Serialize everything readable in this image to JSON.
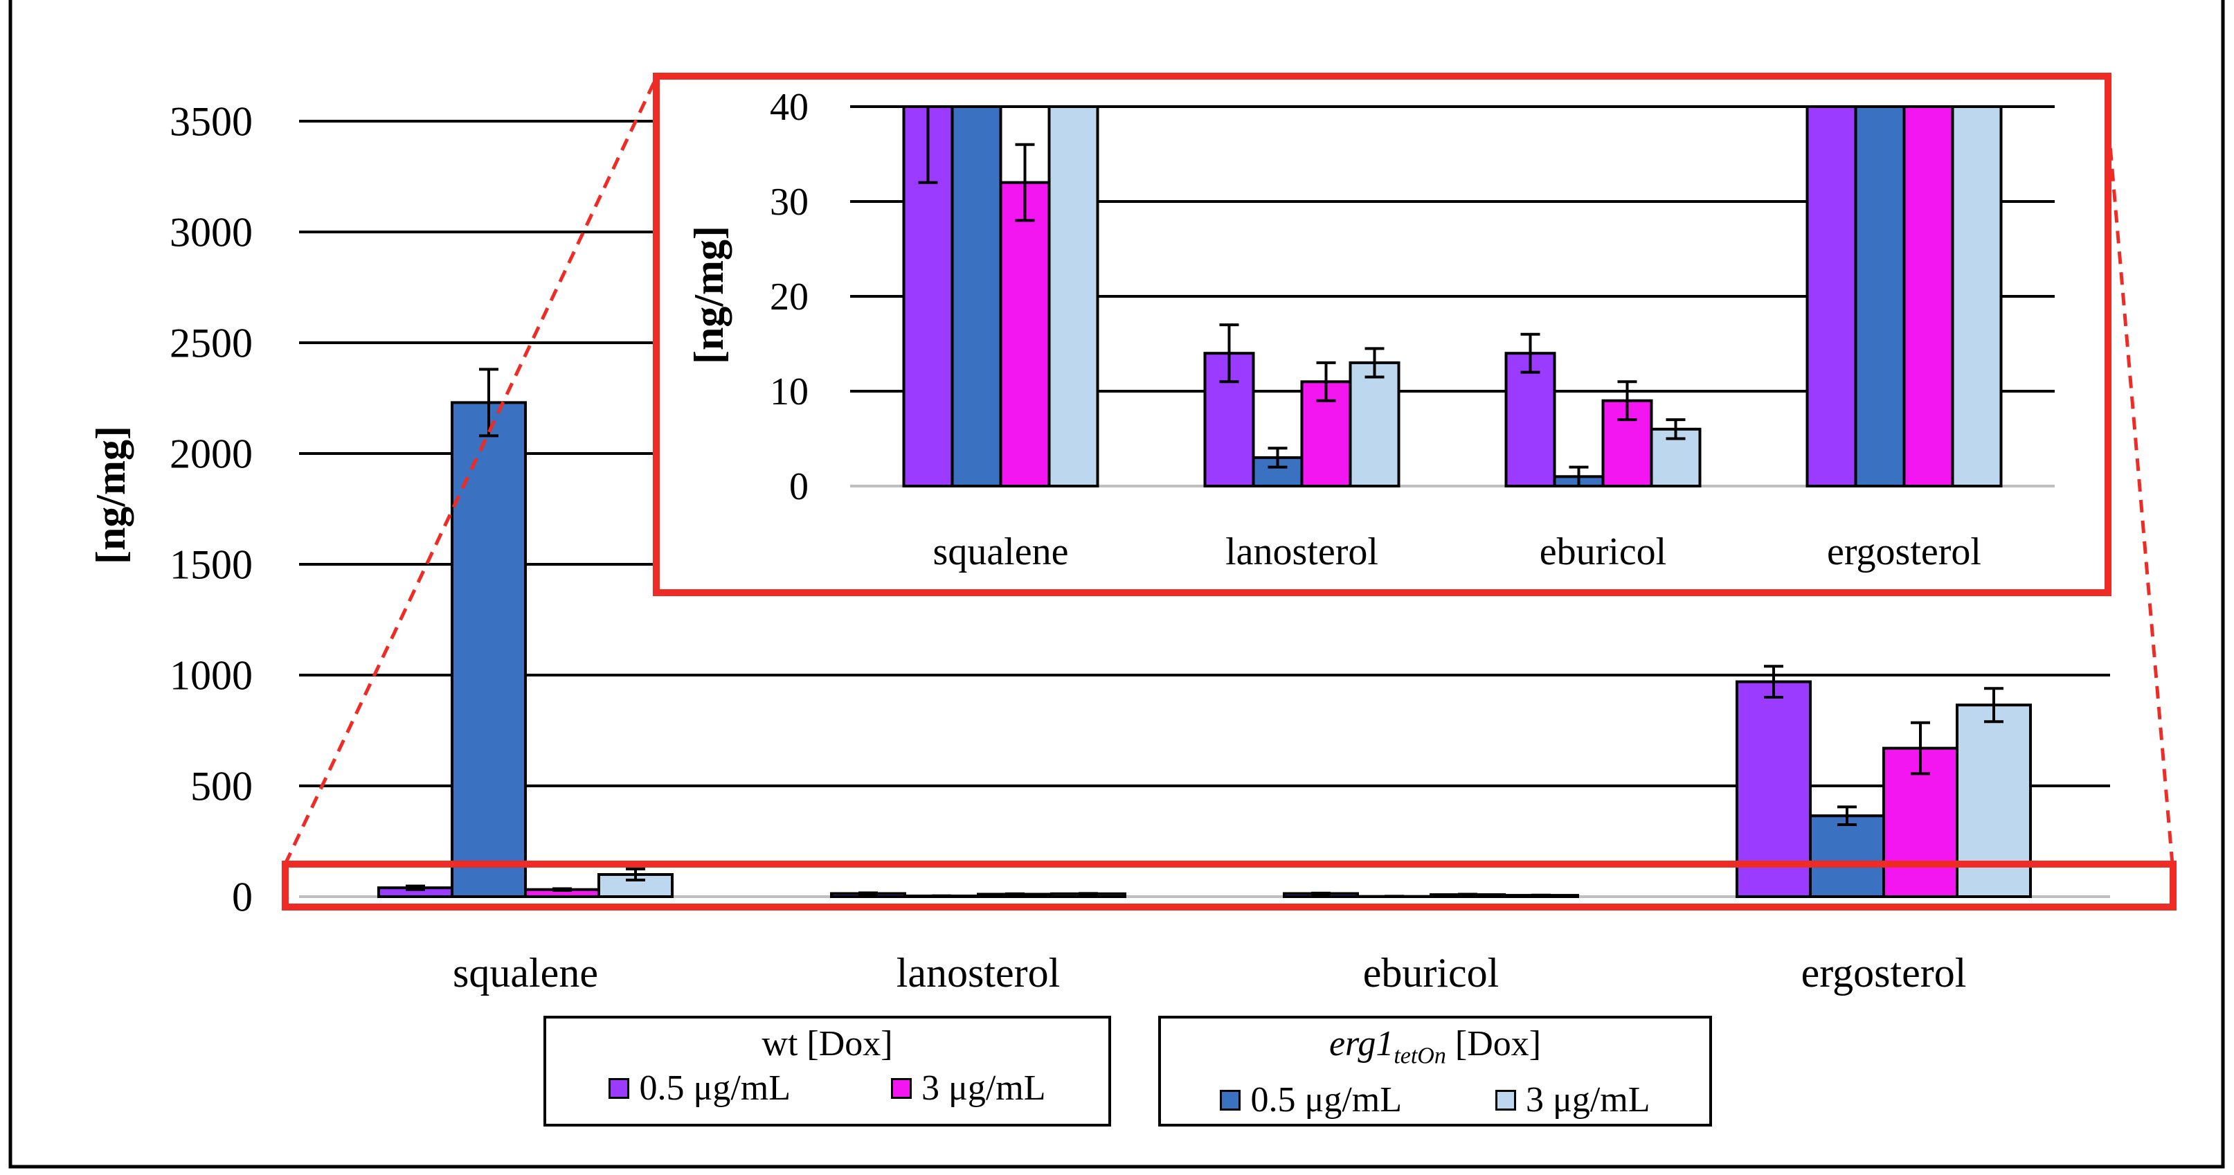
{
  "chart_data": [
    {
      "type": "bar",
      "ylabel": "[ng/mg]",
      "ylim": [
        0,
        3500
      ],
      "yticks": [
        "0",
        "500",
        "1000",
        "1500",
        "2000",
        "2500",
        "3000",
        "3500"
      ],
      "categories": [
        "squalene",
        "lanosterol",
        "eburicol",
        "ergosterol"
      ],
      "series": [
        {
          "values": [
            40,
            14,
            14,
            970
          ],
          "errors": [
            8,
            3,
            2,
            70
          ],
          "color": "#9B3BFF"
        },
        {
          "values": [
            2230,
            3,
            1,
            365
          ],
          "errors": [
            150,
            1,
            1,
            40
          ],
          "color": "#3A71C1"
        },
        {
          "values": [
            32,
            11,
            9,
            670
          ],
          "errors": [
            4,
            2,
            2,
            115
          ],
          "color": "#F316F1"
        },
        {
          "values": [
            100,
            13,
            6,
            865
          ],
          "errors": [
            25,
            1.5,
            1,
            75
          ],
          "color": "#BDD7EE"
        }
      ],
      "grid": true
    },
    {
      "type": "bar",
      "ylabel": "[ng/mg]",
      "ylim": [
        0,
        40
      ],
      "yticks": [
        "0",
        "10",
        "20",
        "30",
        "40"
      ],
      "categories": [
        "squalene",
        "lanosterol",
        "eburicol",
        "ergosterol"
      ],
      "note_values_clipped_at_top": true,
      "grid": true
    }
  ],
  "legend": {
    "groups": [
      {
        "title": "wt [Dox]",
        "items": [
          {
            "label": "0.5 μg/mL",
            "color": "#9B3BFF"
          },
          {
            "label": "3 μg/mL",
            "color": "#F316F1"
          }
        ]
      },
      {
        "title_main": "erg1",
        "title_sub": "tetOn",
        "title_suffix": " [Dox]",
        "items": [
          {
            "label": "0.5 μg/mL",
            "color": "#3A71C1"
          },
          {
            "label": "3 μg/mL",
            "color": "#BDD7EE"
          }
        ]
      }
    ]
  },
  "colors": {
    "highlight": "#EE2B24"
  }
}
